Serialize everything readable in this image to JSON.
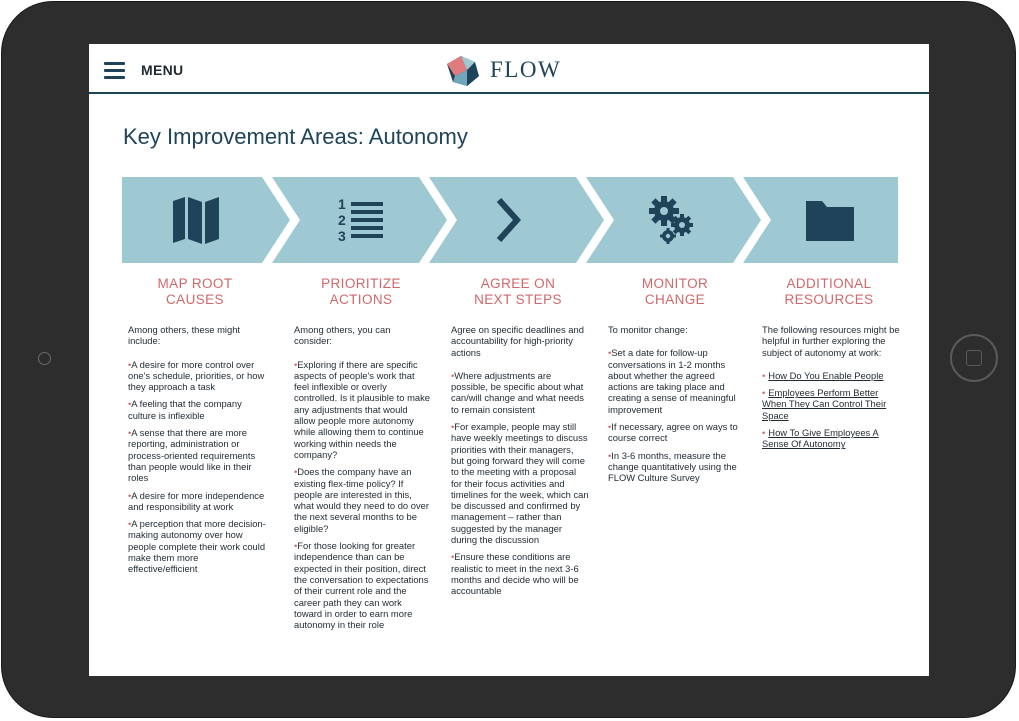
{
  "header": {
    "menu_label": "MENU",
    "logo_text": "FLOW"
  },
  "page": {
    "title": "Key Improvement Areas: Autonomy"
  },
  "colors": {
    "chevron_fill": "#9ec9d3",
    "icon_color": "#1f4459",
    "heading_accent": "#d0676a",
    "text": "#1f2a33"
  },
  "steps": [
    {
      "icon": "map-icon",
      "heading_line1": "MAP ROOT",
      "heading_line2": "CAUSES",
      "intro": "Among others, these might include:",
      "bullets": [
        "A desire for more control over one's schedule, priorities, or how they approach a task",
        "A feeling that the company culture is inflexible",
        "A sense that there are more reporting, administration or process-oriented requirements than people would like in their roles",
        "A desire for more independence and responsibility at work",
        "A perception that more decision-making autonomy over how people complete their work could make them more effective/efficient"
      ]
    },
    {
      "icon": "numbered-list-icon",
      "heading_line1": "PRIORITIZE",
      "heading_line2": "ACTIONS",
      "intro": "Among others, you can consider:",
      "bullets": [
        "Exploring if there are specific aspects of people's work that feel inflexible or overly controlled. Is it plausible to make any adjustments that would allow people more autonomy while allowing them to continue working within needs the company?",
        "Does the company have an existing flex-time policy? If people are interested in this, what would they need to do over the next several months to be eligible?",
        "For those looking for greater independence than can be expected in their position, direct the conversation to expectations of their current role and the career path they can work toward in order to earn more autonomy in their role"
      ]
    },
    {
      "icon": "chevron-right-icon",
      "heading_line1": "AGREE ON",
      "heading_line2": "NEXT STEPS",
      "intro": "Agree on specific deadlines and accountability for high-priority actions",
      "bullets": [
        "Where adjustments are possible, be specific about what can/will change and what needs to remain consistent",
        "For example, people may still have weekly meetings to discuss priorities with their managers, but going forward they will come to the meeting with a proposal for their focus activities and timelines for the week, which can be discussed and confirmed by management – rather than suggested by the manager during the discussion",
        "Ensure these conditions are realistic to meet in the next 3-6 months and decide who will be accountable"
      ]
    },
    {
      "icon": "gears-icon",
      "heading_line1": "MONITOR",
      "heading_line2": "CHANGE",
      "intro": "To monitor change:",
      "bullets": [
        "Set a date for follow-up conversations in 1-2 months about whether the agreed actions are taking place and creating a sense of meaningful improvement",
        "If necessary, agree on ways to course correct",
        "In 3-6 months, measure the change quantitatively using the FLOW Culture Survey"
      ]
    },
    {
      "icon": "folder-icon",
      "heading_line1": "ADDITIONAL",
      "heading_line2": "RESOURCES",
      "intro": "The following resources might be helpful in further exploring the subject of autonomy at work:",
      "links": [
        "How Do You Enable People",
        "Employees Perform Better When They Can Control Their Space",
        "How To Give Employees A Sense Of Autonomy"
      ]
    }
  ]
}
